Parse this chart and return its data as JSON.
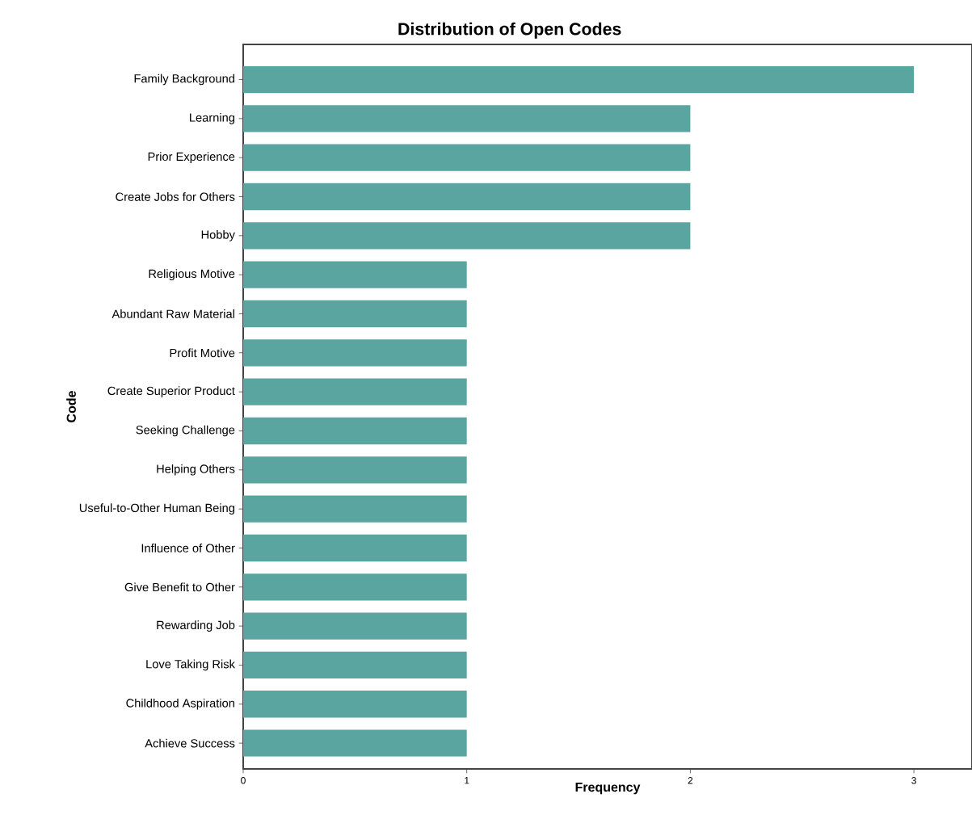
{
  "chart_data": {
    "type": "bar",
    "orientation": "horizontal",
    "title": "Distribution of Open Codes",
    "xlabel": "Frequency",
    "ylabel": "Code",
    "categories": [
      "Family Background",
      "Learning",
      "Prior Experience",
      "Create Jobs for Others",
      "Hobby",
      "Religious Motive",
      "Abundant Raw Material",
      "Profit Motive",
      "Create Superior Product",
      "Seeking Challenge",
      "Helping Others",
      "Useful-to-Other Human Being",
      "Influence of Other",
      "Give Benefit to Other",
      "Rewarding Job",
      "Love Taking Risk",
      "Childhood Aspiration",
      "Achieve Success"
    ],
    "values": [
      3,
      2,
      2,
      2,
      2,
      1,
      1,
      1,
      1,
      1,
      1,
      1,
      1,
      1,
      1,
      1,
      1,
      1
    ],
    "color": "#5ba5a0",
    "xlim": [
      0,
      3.26
    ],
    "xticks": [
      0,
      1,
      2,
      3
    ]
  }
}
